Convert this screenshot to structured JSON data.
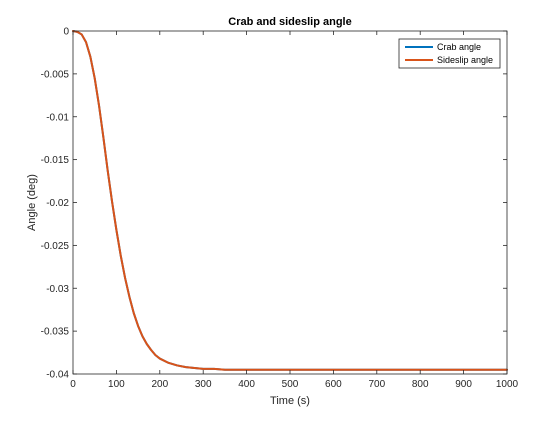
{
  "chart_data": {
    "type": "line",
    "title": "Crab and sideslip angle",
    "xlabel": "Time (s)",
    "ylabel": "Angle (deg)",
    "xlim": [
      0,
      1000
    ],
    "ylim": [
      -0.04,
      0
    ],
    "xticks": [
      0,
      100,
      200,
      300,
      400,
      500,
      600,
      700,
      800,
      900,
      1000
    ],
    "xtick_labels": [
      "0",
      "100",
      "200",
      "300",
      "400",
      "500",
      "600",
      "700",
      "800",
      "900",
      "1000"
    ],
    "yticks": [
      0,
      -0.005,
      -0.01,
      -0.015,
      -0.02,
      -0.025,
      -0.03,
      -0.035,
      -0.04
    ],
    "ytick_labels": [
      "0",
      "-0.005",
      "-0.01",
      "-0.015",
      "-0.02",
      "-0.025",
      "-0.03",
      "-0.035",
      "-0.04"
    ],
    "grid": false,
    "legend_position": "top-right",
    "x": [
      0,
      10,
      20,
      30,
      40,
      50,
      60,
      70,
      80,
      90,
      100,
      110,
      120,
      130,
      140,
      150,
      160,
      170,
      180,
      190,
      200,
      220,
      240,
      260,
      280,
      300,
      325,
      350,
      375,
      400,
      450,
      500,
      600,
      700,
      800,
      900,
      1000
    ],
    "series": [
      {
        "name": "Crab angle",
        "color": "#0072BD",
        "values": [
          0,
          -0.0001,
          -0.0004,
          -0.0013,
          -0.003,
          -0.0055,
          -0.0087,
          -0.0124,
          -0.0163,
          -0.0199,
          -0.0232,
          -0.0262,
          -0.0288,
          -0.031,
          -0.0329,
          -0.0344,
          -0.0356,
          -0.0365,
          -0.0372,
          -0.0378,
          -0.0382,
          -0.0387,
          -0.039,
          -0.0392,
          -0.0393,
          -0.0394,
          -0.0394,
          -0.0395,
          -0.0395,
          -0.0395,
          -0.0395,
          -0.0395,
          -0.0395,
          -0.0395,
          -0.0395,
          -0.0395,
          -0.0395
        ]
      },
      {
        "name": "Sideslip angle",
        "color": "#D95319",
        "values": [
          0,
          -0.0001,
          -0.0004,
          -0.0013,
          -0.003,
          -0.0055,
          -0.0087,
          -0.0124,
          -0.0163,
          -0.0199,
          -0.0232,
          -0.0262,
          -0.0288,
          -0.031,
          -0.0329,
          -0.0344,
          -0.0356,
          -0.0365,
          -0.0372,
          -0.0378,
          -0.0382,
          -0.0387,
          -0.039,
          -0.0392,
          -0.0393,
          -0.0394,
          -0.0394,
          -0.0395,
          -0.0395,
          -0.0395,
          -0.0395,
          -0.0395,
          -0.0395,
          -0.0395,
          -0.0395,
          -0.0395,
          -0.0395
        ]
      }
    ]
  }
}
